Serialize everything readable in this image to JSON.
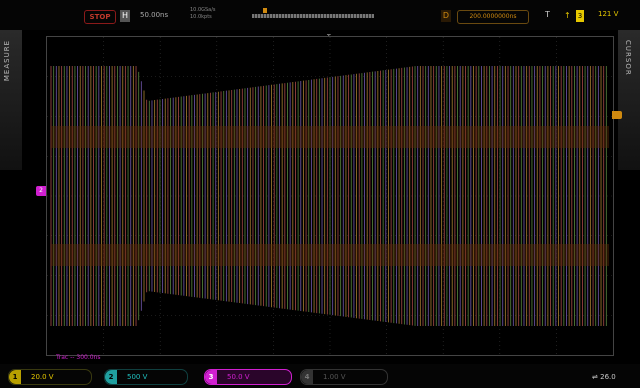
{
  "topbar": {
    "run_state": "STOP",
    "horizontal_mode": "H",
    "timebase": "50.00ns",
    "sample_rate": "10.0GSa/s",
    "memory_depth": "10.0kpts",
    "trigger_mode": "D",
    "trigger_position": "200.0000000ns",
    "trigger_source": "T",
    "trigger_channel": "3",
    "trigger_level": "121 V"
  },
  "side": {
    "left_label": "MEASURE",
    "right_label": "CURSOR"
  },
  "screen": {
    "ch2_marker": "2",
    "center_marker": "T",
    "delay_text": "Trac -- 300.0ns"
  },
  "channels": [
    {
      "num": "1",
      "scale": "20.0 V"
    },
    {
      "num": "2",
      "scale": "500 V"
    },
    {
      "num": "3",
      "scale": "50.0 V"
    },
    {
      "num": "4",
      "scale": "1.00 V"
    }
  ],
  "status": {
    "usb": "26.0"
  },
  "colors": {
    "ch1": "#e6c800",
    "ch2": "#20c0c0",
    "ch3": "#d020d0",
    "trigger": "#d08a10"
  }
}
